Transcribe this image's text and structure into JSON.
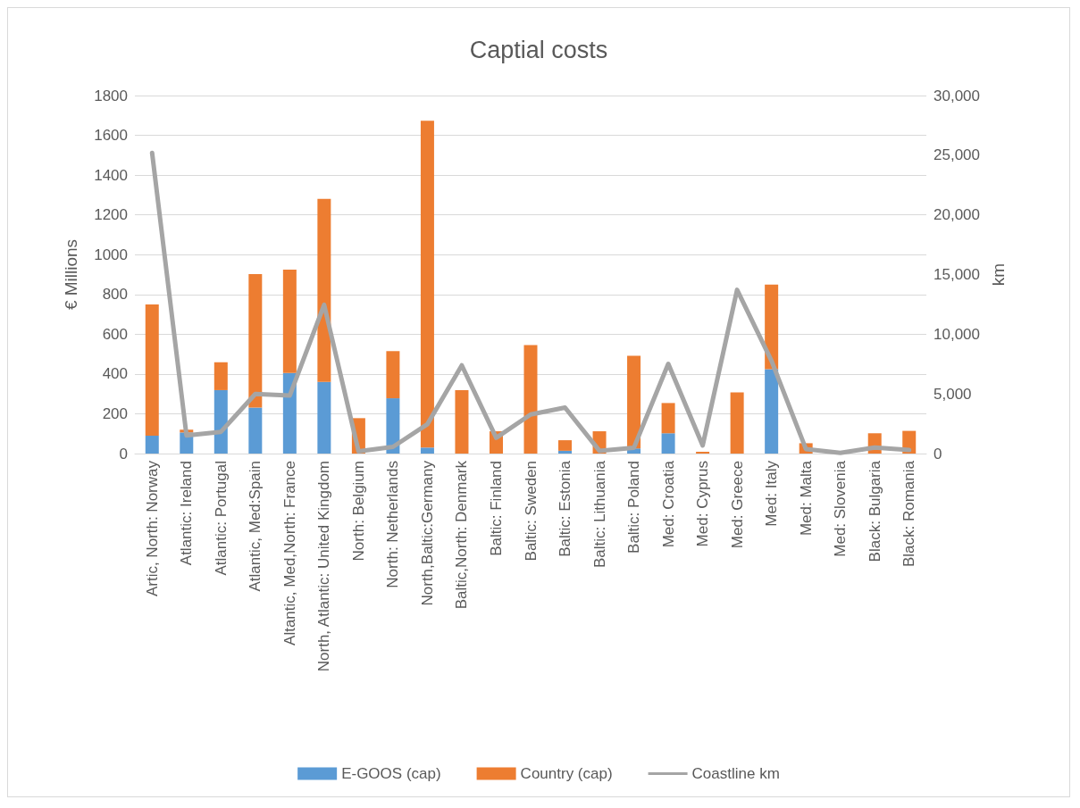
{
  "chart_data": {
    "type": "bar",
    "title": "Captial costs",
    "ylabel": "€ Millions",
    "y2label": "km",
    "stacked": true,
    "grid": "y",
    "legend": "bottom",
    "categories": [
      "Artic, North: Norway",
      "Atlantic: Ireland",
      "Atlantic: Portugal",
      "Atlantic, Med:Spain",
      "Altantic, Med,North: France",
      "North, Atlantic: United Kingdom",
      "North: Belgium",
      "North: Netherlands",
      "North,Baltic:Germany",
      "Baltic,North: Denmark",
      "Baltic: Finland",
      "Baltic: Sweden",
      "Baltic: Estonia",
      "Baltic: Lithuania",
      "Baltic: Poland",
      "Med: Croatia",
      "Med: Cyprus",
      "Med: Greece",
      "Med: Italy",
      "Med: Malta",
      "Med: Slovenia",
      "Black: Bulgaria",
      "Black: Romania"
    ],
    "ylim": [
      0,
      1800
    ],
    "yticks": [
      0,
      200,
      400,
      600,
      800,
      1000,
      1200,
      1400,
      1600,
      1800
    ],
    "y2lim": [
      0,
      30000
    ],
    "y2ticks": [
      {
        "value": 0,
        "label": "0"
      },
      {
        "value": 5000,
        "label": "5,000"
      },
      {
        "value": 10000,
        "label": "10,000"
      },
      {
        "value": 15000,
        "label": "15,000"
      },
      {
        "value": 20000,
        "label": "20,000"
      },
      {
        "value": 25000,
        "label": "25,000"
      },
      {
        "value": 30000,
        "label": "30,000"
      }
    ],
    "series": [
      {
        "name": "E-GOOS (cap)",
        "color": "#5b9bd5",
        "values": [
          90,
          106,
          319,
          231,
          405,
          360,
          0,
          278,
          30,
          0,
          0,
          0,
          14,
          0,
          26,
          102,
          0,
          0,
          424,
          0,
          0,
          0,
          0
        ]
      },
      {
        "name": "Country (cap)",
        "color": "#ed7d31",
        "values": [
          660,
          14,
          140,
          671,
          520,
          920,
          178,
          237,
          1643,
          319,
          112,
          545,
          53,
          112,
          466,
          152,
          9,
          307,
          425,
          52,
          0,
          102,
          114
        ]
      },
      {
        "name": "Coastline km",
        "type": "line",
        "axis": "y2",
        "color": "#a5a5a5",
        "marker": "none",
        "line_style": "solid",
        "values": [
          25200,
          1520,
          1820,
          4990,
          4860,
          12460,
          180,
          560,
          2460,
          7390,
          1320,
          3270,
          3850,
          230,
          480,
          7520,
          680,
          13720,
          7770,
          380,
          50,
          510,
          300
        ]
      }
    ]
  }
}
